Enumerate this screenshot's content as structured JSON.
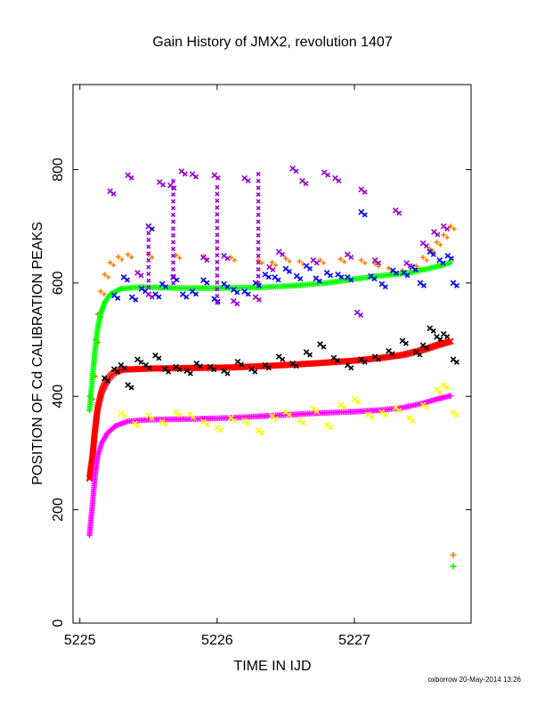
{
  "chart_data": {
    "type": "scatter",
    "title": "Gain History of JMX2, revolution 1407",
    "xlabel": "TIME IN IJD",
    "ylabel": "POSITION OF Cd CALIBRATION PEAKS",
    "xlim": [
      5224.95,
      5227.85
    ],
    "ylim": [
      0,
      950
    ],
    "x_ticks": [
      5225,
      5226,
      5227
    ],
    "y_ticks": [
      0,
      200,
      400,
      600,
      800
    ],
    "grid": false,
    "legend": "none",
    "footer": "oxborrow 20-May-2014 13:26",
    "series": [
      {
        "color": "#ff7f00",
        "marker": "plus",
        "points": [
          [
            5225.07,
            400
          ],
          [
            5225.09,
            440
          ],
          [
            5225.11,
            500
          ],
          [
            5225.13,
            545
          ],
          [
            5225.15,
            585
          ],
          [
            5225.18,
            615
          ],
          [
            5225.22,
            636
          ],
          [
            5225.28,
            646
          ],
          [
            5225.35,
            650
          ],
          [
            5225.5,
            650
          ],
          [
            5225.7,
            649
          ],
          [
            5225.9,
            647
          ],
          [
            5226.1,
            645
          ],
          [
            5226.3,
            640
          ],
          [
            5226.4,
            636
          ],
          [
            5226.5,
            643
          ],
          [
            5226.6,
            638
          ],
          [
            5226.75,
            640
          ],
          [
            5226.9,
            642
          ],
          [
            5227.05,
            640
          ],
          [
            5227.15,
            634
          ],
          [
            5227.25,
            626
          ],
          [
            5227.35,
            622
          ],
          [
            5227.45,
            630
          ],
          [
            5227.5,
            645
          ],
          [
            5227.55,
            660
          ],
          [
            5227.6,
            672
          ],
          [
            5227.65,
            685
          ],
          [
            5227.7,
            700
          ]
        ],
        "markers": [
          [
            5227.72,
            120
          ]
        ]
      },
      {
        "color": "#00ff00",
        "marker": "plus",
        "points": [
          [
            5225.07,
            375
          ],
          [
            5225.09,
            430
          ],
          [
            5225.11,
            480
          ],
          [
            5225.13,
            520
          ],
          [
            5225.15,
            545
          ],
          [
            5225.18,
            565
          ],
          [
            5225.22,
            580
          ],
          [
            5225.3,
            590
          ],
          [
            5225.45,
            593
          ],
          [
            5225.7,
            591
          ],
          [
            5226.0,
            591
          ],
          [
            5226.3,
            592
          ],
          [
            5226.55,
            595
          ],
          [
            5226.8,
            600
          ],
          [
            5227.0,
            607
          ],
          [
            5227.2,
            613
          ],
          [
            5227.4,
            618
          ],
          [
            5227.55,
            626
          ],
          [
            5227.65,
            632
          ],
          [
            5227.7,
            636
          ]
        ],
        "markers": [
          [
            5227.72,
            100
          ]
        ]
      },
      {
        "color": "#ff0000",
        "marker": "cross",
        "points": [
          [
            5225.07,
            255
          ],
          [
            5225.09,
            290
          ],
          [
            5225.11,
            340
          ],
          [
            5225.13,
            380
          ],
          [
            5225.16,
            410
          ],
          [
            5225.2,
            430
          ],
          [
            5225.25,
            442
          ],
          [
            5225.3,
            447
          ],
          [
            5225.5,
            449
          ],
          [
            5225.8,
            450
          ],
          [
            5226.1,
            451
          ],
          [
            5226.4,
            454
          ],
          [
            5226.7,
            458
          ],
          [
            5227.0,
            463
          ],
          [
            5227.2,
            468
          ],
          [
            5227.35,
            473
          ],
          [
            5227.5,
            482
          ],
          [
            5227.6,
            490
          ],
          [
            5227.7,
            497
          ]
        ]
      },
      {
        "color": "#ff00ff",
        "marker": "plus",
        "points": [
          [
            5225.07,
            155
          ],
          [
            5225.09,
            205
          ],
          [
            5225.11,
            260
          ],
          [
            5225.13,
            295
          ],
          [
            5225.16,
            318
          ],
          [
            5225.2,
            335
          ],
          [
            5225.26,
            348
          ],
          [
            5225.35,
            356
          ],
          [
            5225.5,
            359
          ],
          [
            5225.8,
            360
          ],
          [
            5226.1,
            362
          ],
          [
            5226.4,
            366
          ],
          [
            5226.7,
            370
          ],
          [
            5227.0,
            373
          ],
          [
            5227.2,
            376
          ],
          [
            5227.35,
            380
          ],
          [
            5227.5,
            388
          ],
          [
            5227.6,
            395
          ],
          [
            5227.7,
            401
          ]
        ]
      },
      {
        "color": "#000000",
        "marker": "cross",
        "points": [
          [
            5225.18,
            432
          ],
          [
            5225.25,
            448
          ],
          [
            5225.3,
            455
          ],
          [
            5225.35,
            420
          ],
          [
            5225.42,
            465
          ],
          [
            5225.48,
            455
          ],
          [
            5225.55,
            472
          ],
          [
            5225.62,
            448
          ],
          [
            5225.7,
            452
          ],
          [
            5225.78,
            445
          ],
          [
            5225.85,
            458
          ],
          [
            5225.95,
            452
          ],
          [
            5226.05,
            445
          ],
          [
            5226.15,
            461
          ],
          [
            5226.25,
            448
          ],
          [
            5226.35,
            455
          ],
          [
            5226.45,
            470
          ],
          [
            5226.55,
            458
          ],
          [
            5226.65,
            478
          ],
          [
            5226.75,
            492
          ],
          [
            5226.85,
            468
          ],
          [
            5226.95,
            455
          ],
          [
            5227.05,
            465
          ],
          [
            5227.15,
            470
          ],
          [
            5227.25,
            480
          ],
          [
            5227.35,
            498
          ],
          [
            5227.45,
            478
          ],
          [
            5227.5,
            490
          ],
          [
            5227.55,
            520
          ],
          [
            5227.6,
            505
          ],
          [
            5227.65,
            510
          ],
          [
            5227.72,
            465
          ]
        ]
      },
      {
        "color": "#ffff00",
        "marker": "cross",
        "points": [
          [
            5225.3,
            370
          ],
          [
            5225.4,
            352
          ],
          [
            5225.5,
            366
          ],
          [
            5225.6,
            355
          ],
          [
            5225.7,
            372
          ],
          [
            5225.8,
            368
          ],
          [
            5225.9,
            355
          ],
          [
            5226.0,
            345
          ],
          [
            5226.1,
            362
          ],
          [
            5226.2,
            357
          ],
          [
            5226.3,
            340
          ],
          [
            5226.4,
            365
          ],
          [
            5226.5,
            372
          ],
          [
            5226.6,
            358
          ],
          [
            5226.7,
            378
          ],
          [
            5226.8,
            350
          ],
          [
            5226.9,
            385
          ],
          [
            5227.0,
            395
          ],
          [
            5227.1,
            368
          ],
          [
            5227.2,
            372
          ],
          [
            5227.3,
            380
          ],
          [
            5227.4,
            362
          ],
          [
            5227.5,
            385
          ],
          [
            5227.6,
            412
          ],
          [
            5227.65,
            420
          ],
          [
            5227.72,
            372
          ]
        ]
      },
      {
        "color": "#0000ff",
        "marker": "cross",
        "points": [
          [
            5225.25,
            578
          ],
          [
            5225.32,
            610
          ],
          [
            5225.38,
            575
          ],
          [
            5225.45,
            590
          ],
          [
            5225.5,
            700
          ],
          [
            5225.55,
            580
          ],
          [
            5225.6,
            598
          ],
          [
            5225.68,
            610
          ],
          [
            5225.75,
            580
          ],
          [
            5225.82,
            585
          ],
          [
            5225.9,
            605
          ],
          [
            5225.98,
            572
          ],
          [
            5226.05,
            598
          ],
          [
            5226.12,
            588
          ],
          [
            5226.2,
            585
          ],
          [
            5226.28,
            600
          ],
          [
            5226.35,
            615
          ],
          [
            5226.42,
            610
          ],
          [
            5226.5,
            625
          ],
          [
            5226.58,
            612
          ],
          [
            5226.65,
            630
          ],
          [
            5226.72,
            608
          ],
          [
            5226.8,
            618
          ],
          [
            5226.88,
            615
          ],
          [
            5226.95,
            610
          ],
          [
            5227.05,
            725
          ],
          [
            5227.12,
            612
          ],
          [
            5227.2,
            598
          ],
          [
            5227.28,
            622
          ],
          [
            5227.36,
            618
          ],
          [
            5227.42,
            628
          ],
          [
            5227.48,
            600
          ],
          [
            5227.55,
            655
          ],
          [
            5227.62,
            640
          ],
          [
            5227.68,
            648
          ],
          [
            5227.72,
            600
          ]
        ]
      },
      {
        "color": "#9400d3",
        "marker": "cross",
        "points": [
          [
            5225.22,
            762
          ],
          [
            5225.35,
            790
          ],
          [
            5225.42,
            618
          ],
          [
            5225.5,
            580
          ],
          [
            5225.58,
            778
          ],
          [
            5225.66,
            772
          ],
          [
            5225.74,
            797
          ],
          [
            5225.82,
            792
          ],
          [
            5225.9,
            645
          ],
          [
            5225.98,
            790
          ],
          [
            5226.05,
            648
          ],
          [
            5226.12,
            568
          ],
          [
            5226.2,
            785
          ],
          [
            5226.28,
            575
          ],
          [
            5226.38,
            628
          ],
          [
            5226.45,
            655
          ],
          [
            5226.55,
            802
          ],
          [
            5226.62,
            780
          ],
          [
            5226.7,
            640
          ],
          [
            5226.78,
            795
          ],
          [
            5226.86,
            785
          ],
          [
            5226.95,
            650
          ],
          [
            5227.02,
            548
          ],
          [
            5227.05,
            765
          ],
          [
            5227.15,
            640
          ],
          [
            5227.3,
            728
          ],
          [
            5227.38,
            635
          ],
          [
            5227.5,
            670
          ],
          [
            5227.58,
            690
          ],
          [
            5227.65,
            700
          ]
        ],
        "spikes": [
          [
            5225.5,
            580,
            700
          ],
          [
            5225.68,
            600,
            790
          ],
          [
            5226.0,
            565,
            780
          ],
          [
            5226.3,
            600,
            800
          ]
        ]
      }
    ]
  }
}
